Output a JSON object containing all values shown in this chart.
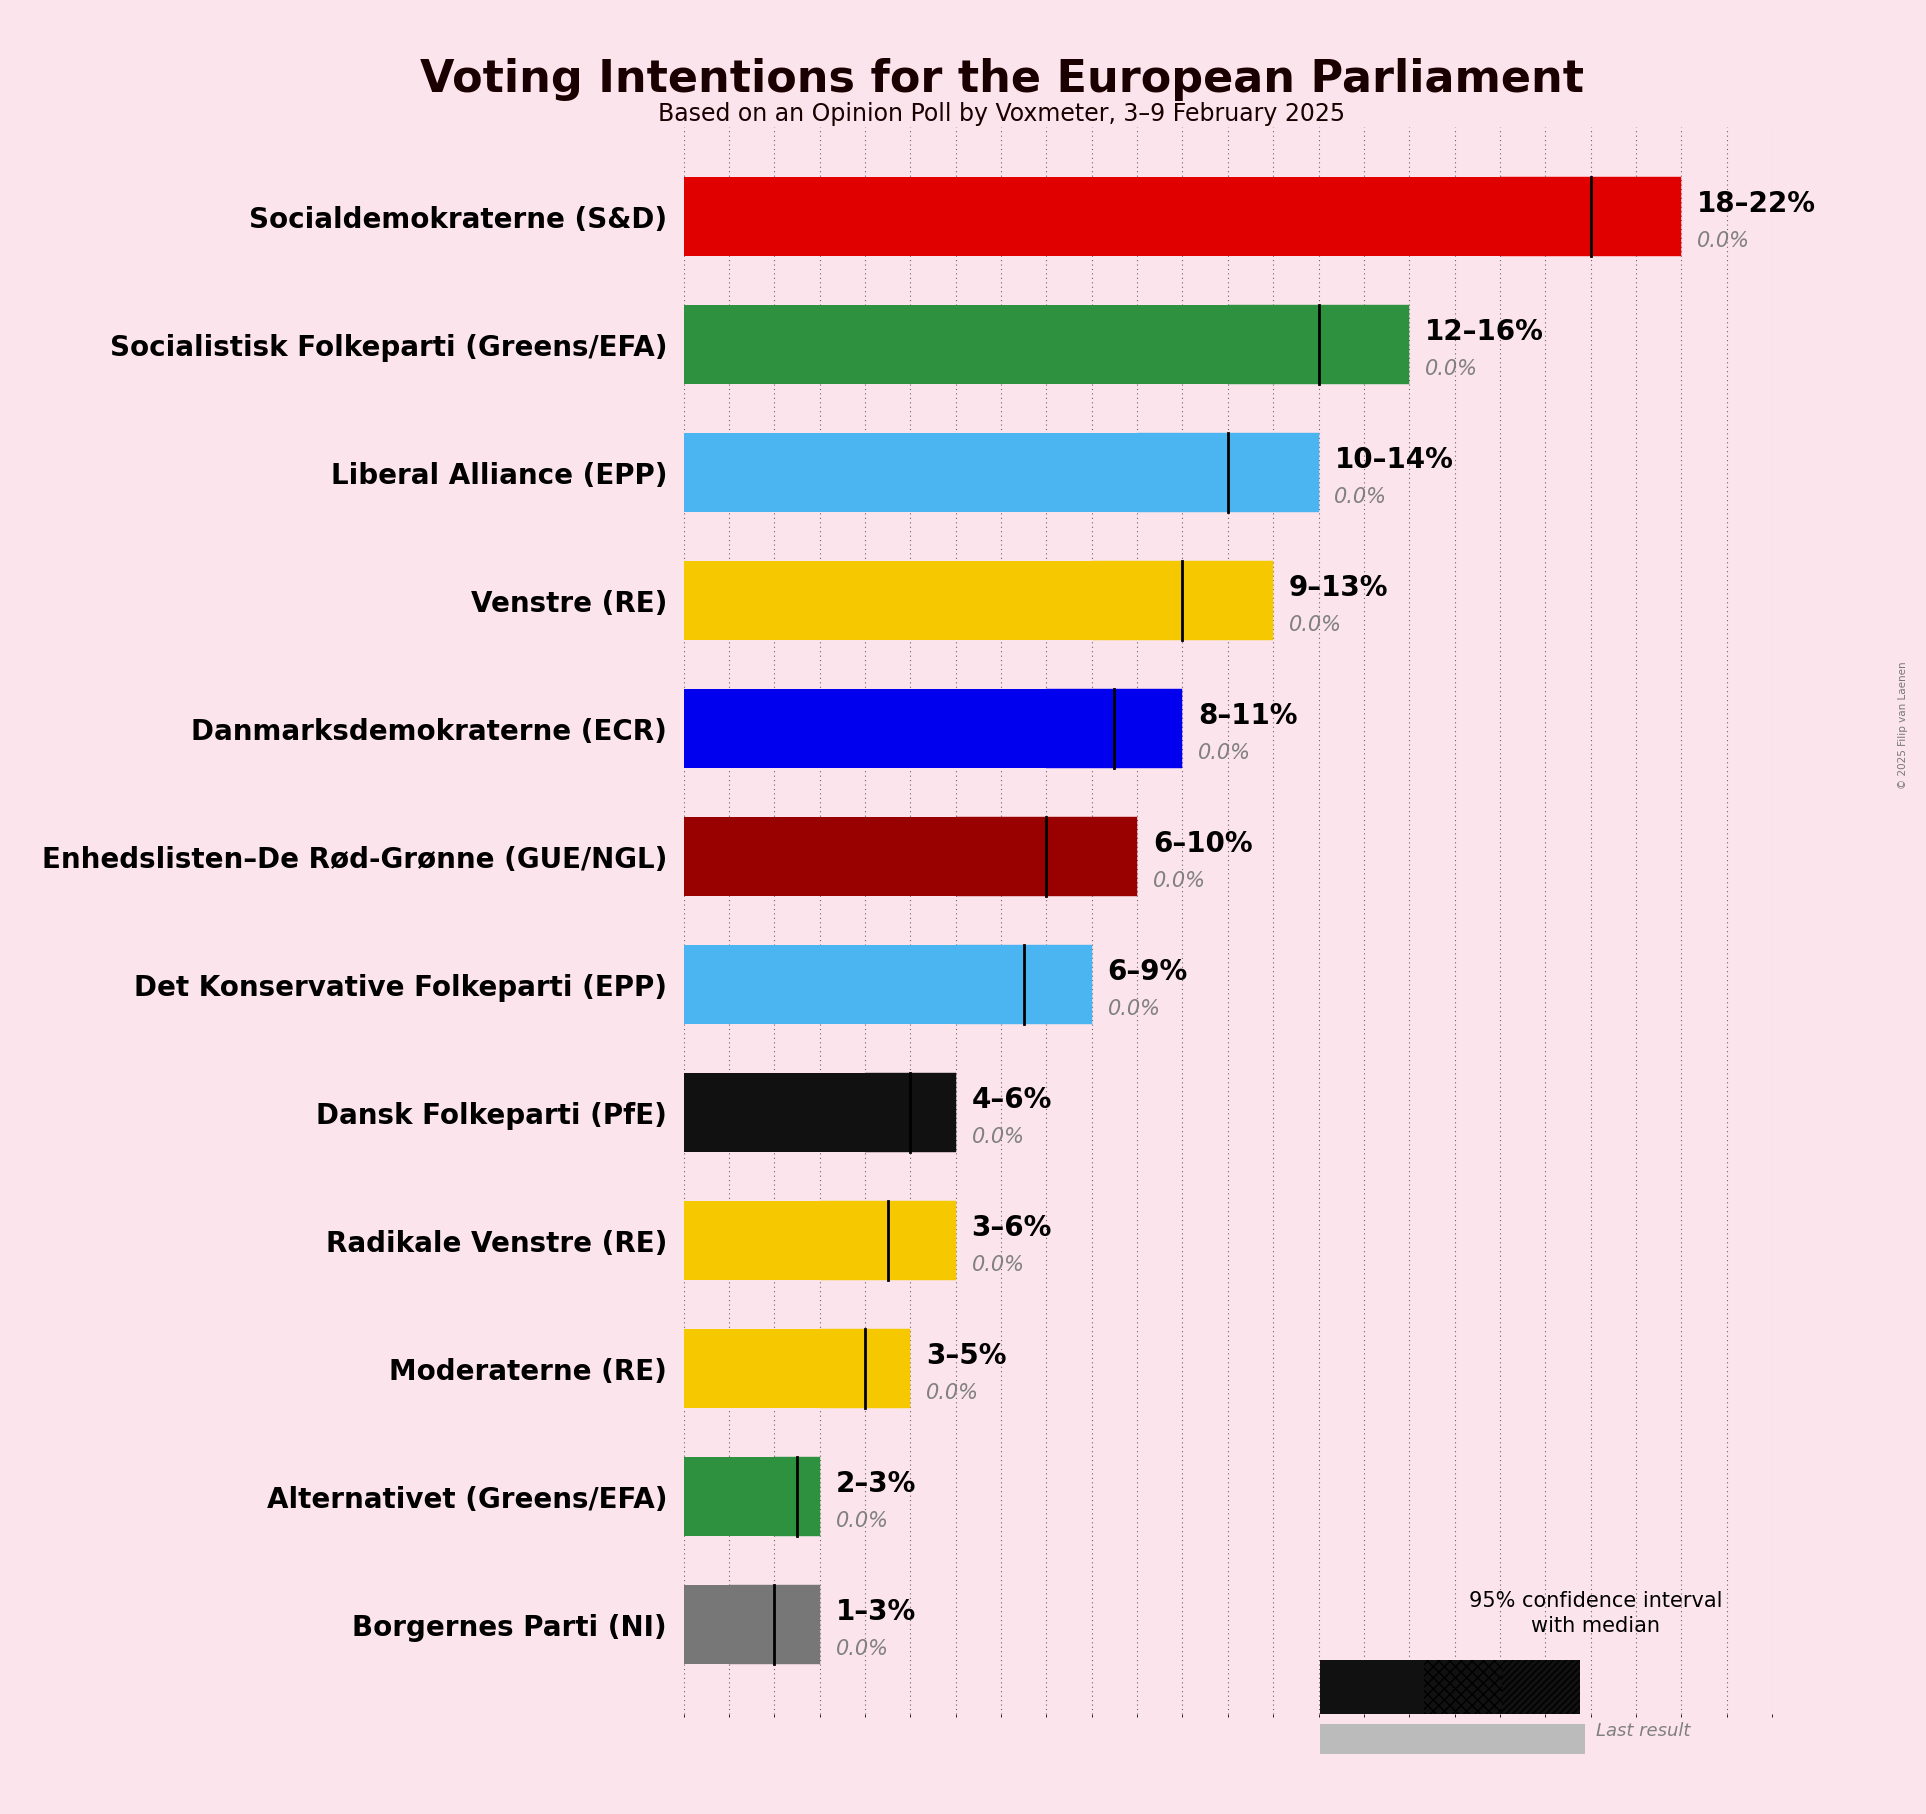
{
  "title": "Voting Intentions for the European Parliament",
  "subtitle": "Based on an Opinion Poll by Voxmeter, 3–9 February 2025",
  "copyright": "© 2025 Filip van Laenen",
  "background_color": "#fce4ec",
  "parties": [
    {
      "name": "Socialdemokraterne (S&D)",
      "color": "#e00000",
      "low": 18,
      "median": 20,
      "high": 22,
      "last": 0.0
    },
    {
      "name": "Socialistisk Folkeparti (Greens/EFA)",
      "color": "#2d9140",
      "low": 12,
      "median": 14,
      "high": 16,
      "last": 0.0
    },
    {
      "name": "Liberal Alliance (EPP)",
      "color": "#4ab5f0",
      "low": 10,
      "median": 12,
      "high": 14,
      "last": 0.0
    },
    {
      "name": "Venstre (RE)",
      "color": "#f5c800",
      "low": 9,
      "median": 11,
      "high": 13,
      "last": 0.0
    },
    {
      "name": "Danmarksdemokraterne (ECR)",
      "color": "#0000ee",
      "low": 8,
      "median": 9.5,
      "high": 11,
      "last": 0.0
    },
    {
      "name": "Enhedslisten–De Rød-Grønne (GUE/NGL)",
      "color": "#990000",
      "low": 6,
      "median": 8,
      "high": 10,
      "last": 0.0
    },
    {
      "name": "Det Konservative Folkeparti (EPP)",
      "color": "#4ab5f0",
      "low": 6,
      "median": 7.5,
      "high": 9,
      "last": 0.0
    },
    {
      "name": "Dansk Folkeparti (PfE)",
      "color": "#111111",
      "low": 4,
      "median": 5,
      "high": 6,
      "last": 0.0
    },
    {
      "name": "Radikale Venstre (RE)",
      "color": "#f5c800",
      "low": 3,
      "median": 4.5,
      "high": 6,
      "last": 0.0
    },
    {
      "name": "Moderaterne (RE)",
      "color": "#f5c800",
      "low": 3,
      "median": 4,
      "high": 5,
      "last": 0.0
    },
    {
      "name": "Alternativet (Greens/EFA)",
      "color": "#2d9140",
      "low": 2,
      "median": 2.5,
      "high": 3,
      "last": 0.0
    },
    {
      "name": "Borgernes Parti (NI)",
      "color": "#777777",
      "low": 1,
      "median": 2,
      "high": 3,
      "last": 0.0
    }
  ],
  "xlim_max": 24,
  "bar_height": 0.62,
  "label_fontsize": 20,
  "title_fontsize": 32,
  "subtitle_fontsize": 17,
  "name_fontsize": 20,
  "annot_fontsize": 20,
  "sub_annot_fontsize": 15,
  "hatch_lw": 0.5
}
